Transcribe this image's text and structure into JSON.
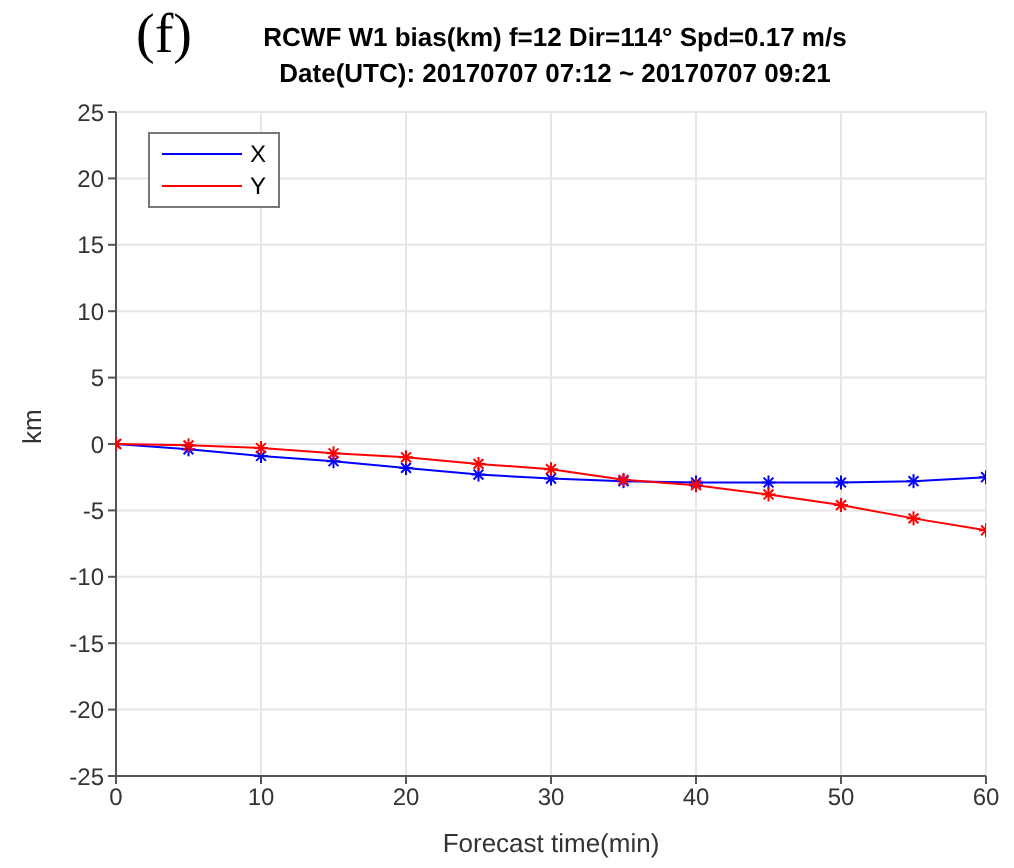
{
  "chart_data": {
    "type": "line",
    "title": "RCWF W1 bias(km)  f=12  Dir=114°  Spd=0.17 m/s",
    "subtitle": "Date(UTC): 20170707 07:12 ~ 20170707 09:21",
    "annotations": [
      "(f)"
    ],
    "xlabel": "Forecast time(min)",
    "ylabel": "km",
    "x": [
      0,
      5,
      10,
      15,
      20,
      25,
      30,
      35,
      40,
      45,
      50,
      55,
      60
    ],
    "series": [
      {
        "name": "X",
        "color": "#0000ff",
        "values": [
          0,
          -0.4,
          -0.9,
          -1.3,
          -1.8,
          -2.3,
          -2.6,
          -2.8,
          -2.9,
          -2.9,
          -2.9,
          -2.8,
          -2.5
        ]
      },
      {
        "name": "Y",
        "color": "#ff0000",
        "values": [
          0,
          -0.1,
          -0.3,
          -0.7,
          -1.0,
          -1.5,
          -1.9,
          -2.7,
          -3.1,
          -3.8,
          -4.6,
          -5.6,
          -6.5
        ]
      }
    ],
    "xlim": [
      0,
      60
    ],
    "xticks": [
      0,
      10,
      20,
      30,
      40,
      50,
      60
    ],
    "ylim": [
      -25,
      25
    ],
    "yticks": [
      -25,
      -20,
      -15,
      -10,
      -5,
      0,
      5,
      10,
      15,
      20,
      25
    ],
    "grid": true,
    "legend": "top left",
    "marker": "cross"
  }
}
